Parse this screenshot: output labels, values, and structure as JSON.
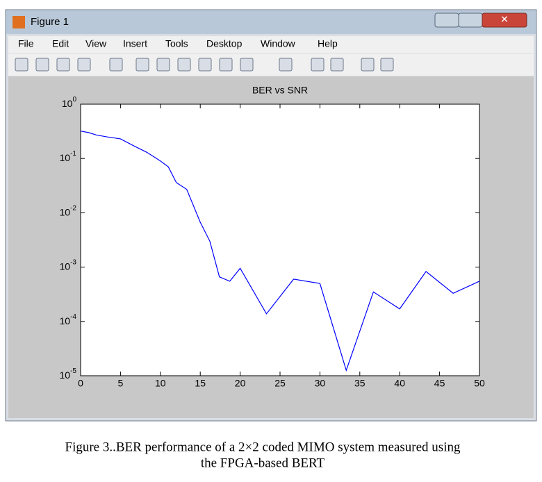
{
  "window": {
    "title": "Figure 1",
    "menu": [
      "File",
      "Edit",
      "View",
      "Insert",
      "Tools",
      "Desktop",
      "Window",
      "Help"
    ]
  },
  "chart_data": {
    "type": "line",
    "title": "BER vs SNR",
    "x": [
      0,
      1,
      2,
      3.3,
      5,
      6.7,
      8.3,
      10,
      11,
      12,
      13.3,
      15,
      16.2,
      17.4,
      18.7,
      20,
      20.3,
      23.3,
      26.7,
      30,
      33.3,
      36.7,
      40,
      43.3,
      46.7,
      50
    ],
    "series": [
      {
        "name": "BER",
        "color": "#0000ff",
        "values": [
          0.32,
          0.3,
          0.27,
          0.25,
          0.23,
          0.17,
          0.13,
          0.09,
          0.07,
          0.036,
          0.027,
          0.0067,
          0.003,
          0.00066,
          0.00055,
          0.00095,
          0.0008,
          0.000138,
          0.0006,
          0.0005,
          1.26e-05,
          0.00035,
          0.00017,
          0.00083,
          0.00033,
          0.00055
        ]
      }
    ],
    "xlim": [
      0,
      50
    ],
    "xticks": [
      0,
      5,
      10,
      15,
      20,
      25,
      30,
      35,
      40,
      45,
      50
    ],
    "ylim": [
      1e-05,
      1
    ],
    "log_y": true,
    "yticks": [
      {
        "value": 1,
        "label": "10^0"
      },
      {
        "value": 0.1,
        "label": "10^-1"
      },
      {
        "value": 0.01,
        "label": "10^-2"
      },
      {
        "value": 0.001,
        "label": "10^-3"
      },
      {
        "value": 0.0001,
        "label": "10^-4"
      },
      {
        "value": 1e-05,
        "label": "10^-5"
      }
    ]
  },
  "caption": [
    "Figure 3..BER performance of a 2×2 coded MIMO system measured using",
    "the FPGA-based BERT"
  ]
}
